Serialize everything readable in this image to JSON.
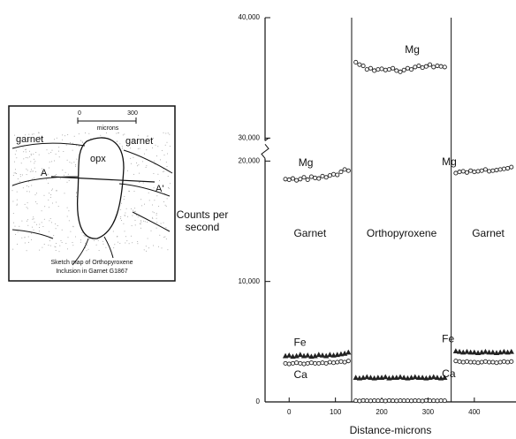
{
  "chart_data": {
    "type": "scatter",
    "ylabel": [
      "Counts per",
      "second"
    ],
    "xlabel": "Distance-microns",
    "xlim": [
      -52,
      490
    ],
    "xticks": [
      0,
      100,
      200,
      300,
      400
    ],
    "ylim": [
      0,
      40000
    ],
    "ybreak": [
      20000,
      30000
    ],
    "yticks": [
      0,
      {
        "value": 10000,
        "label": "10,000"
      },
      {
        "value": 20000,
        "label": "20,000"
      },
      {
        "value": 30000,
        "label": "30,000"
      },
      {
        "value": 40000,
        "label": "40,000"
      }
    ],
    "boundaries": [
      135,
      350
    ],
    "regions": [
      {
        "label": "Garnet",
        "x": 45
      },
      {
        "label": "Orthopyroxene",
        "x": 243
      },
      {
        "label": "Garnet",
        "x": 430
      }
    ],
    "x": [
      -8,
      0,
      8,
      16,
      24,
      32,
      40,
      48,
      56,
      64,
      72,
      80,
      88,
      96,
      104,
      112,
      120,
      128,
      144,
      152,
      160,
      168,
      176,
      184,
      192,
      200,
      208,
      216,
      224,
      232,
      240,
      248,
      256,
      264,
      272,
      280,
      288,
      296,
      304,
      312,
      320,
      328,
      336,
      360,
      368,
      376,
      384,
      392,
      400,
      408,
      416,
      424,
      432,
      440,
      448,
      456,
      464,
      472,
      480
    ],
    "series": [
      {
        "name": "Mg",
        "marker": "circle",
        "color": "#222",
        "values": [
          18500,
          18450,
          18550,
          18400,
          18500,
          18650,
          18450,
          18700,
          18600,
          18550,
          18750,
          18650,
          18800,
          18900,
          18850,
          19100,
          19300,
          19200,
          36300,
          36100,
          36000,
          35700,
          35800,
          35600,
          35700,
          35750,
          35650,
          35700,
          35800,
          35600,
          35500,
          35650,
          35800,
          35700,
          35900,
          36000,
          35850,
          35950,
          36100,
          35900,
          36000,
          35950,
          35900,
          19000,
          19100,
          19150,
          19050,
          19200,
          19100,
          19150,
          19200,
          19300,
          19150,
          19200,
          19250,
          19300,
          19350,
          19400,
          19500
        ]
      },
      {
        "name": "Fe",
        "marker": "triangle",
        "color": "#222",
        "values": [
          3800,
          3850,
          3750,
          3800,
          3900,
          3800,
          3850,
          3750,
          3800,
          3900,
          3850,
          3800,
          3900,
          3850,
          3900,
          3950,
          4000,
          4100,
          2000,
          1950,
          2000,
          2050,
          2000,
          1950,
          2000,
          2000,
          2050,
          1950,
          2000,
          2000,
          2050,
          2000,
          1950,
          2000,
          2050,
          2000,
          2000,
          1950,
          2000,
          2050,
          2000,
          1950,
          2000,
          4200,
          4150,
          4100,
          4150,
          4100,
          4100,
          4050,
          4100,
          4150,
          4100,
          4100,
          4050,
          4100,
          4150,
          4100,
          4150
        ]
      },
      {
        "name": "Ca",
        "marker": "circle",
        "color": "#222",
        "values": [
          3200,
          3150,
          3200,
          3250,
          3200,
          3150,
          3200,
          3250,
          3200,
          3200,
          3250,
          3200,
          3300,
          3250,
          3300,
          3350,
          3300,
          3400,
          100,
          80,
          120,
          100,
          90,
          110,
          100,
          100,
          80,
          120,
          100,
          90,
          110,
          100,
          100,
          90,
          110,
          100,
          80,
          120,
          100,
          100,
          90,
          110,
          100,
          3400,
          3350,
          3300,
          3350,
          3300,
          3300,
          3250,
          3300,
          3350,
          3300,
          3300,
          3250,
          3300,
          3350,
          3300,
          3350
        ]
      }
    ],
    "series_label_spots": [
      [
        [
          20,
          19800
        ],
        [
          330,
          19900
        ]
      ],
      [
        [
          10,
          4900
        ],
        [
          330,
          5200
        ]
      ],
      [
        [
          10,
          2200
        ],
        [
          330,
          2300
        ]
      ]
    ],
    "opx_label_spot": [
      250,
      37300
    ],
    "inset": {
      "scale_start": "0",
      "scale_end": "300",
      "scale_unit": "microns",
      "garnet_left": "garnet",
      "opx": "opx",
      "garnet_right": "garnet",
      "point_a": "A",
      "point_a_prime": "A'",
      "caption": [
        "Sketch map of Orthopyroxene",
        "Inclusion in Garnet G1867"
      ]
    }
  }
}
